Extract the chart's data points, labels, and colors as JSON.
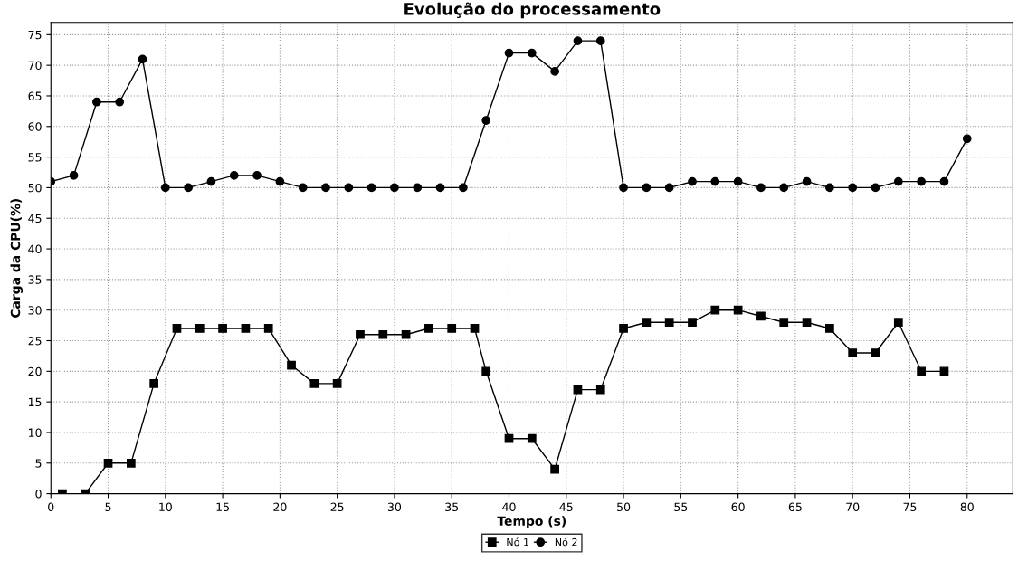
{
  "chart_data": {
    "type": "line",
    "title": "Evolução do processamento",
    "xlabel": "Tempo (s)",
    "ylabel": "Carga da CPU(%)",
    "xlim": [
      0,
      84
    ],
    "ylim": [
      0,
      77
    ],
    "xticks": [
      0,
      5,
      10,
      15,
      20,
      25,
      30,
      35,
      40,
      45,
      50,
      55,
      60,
      65,
      70,
      75,
      80
    ],
    "yticks": [
      0,
      5,
      10,
      15,
      20,
      25,
      30,
      35,
      40,
      45,
      50,
      55,
      60,
      65,
      70,
      75
    ],
    "grid": true,
    "legend": "bottom",
    "line_style": "solid",
    "series": [
      {
        "name": "Nó 1",
        "color": "#000000",
        "marker": "square",
        "x": [
          1,
          3,
          5,
          7,
          9,
          11,
          13,
          15,
          17,
          19,
          21,
          23,
          25,
          27,
          29,
          31,
          33,
          35,
          37,
          38,
          40,
          42,
          44,
          46,
          48,
          50,
          52,
          54,
          56,
          58,
          60,
          62,
          64,
          66,
          68,
          70,
          72,
          74,
          76,
          78
        ],
        "values": [
          0,
          0,
          5,
          5,
          18,
          27,
          27,
          27,
          27,
          27,
          21,
          18,
          18,
          26,
          26,
          26,
          27,
          27,
          27,
          20,
          9,
          9,
          4,
          17,
          17,
          27,
          28,
          28,
          28,
          30,
          30,
          29,
          28,
          28,
          27,
          23,
          23,
          28,
          20,
          20
        ]
      },
      {
        "name": "Nó 2",
        "color": "#000000",
        "marker": "circle",
        "x": [
          0,
          2,
          4,
          6,
          8,
          10,
          12,
          14,
          16,
          18,
          20,
          22,
          24,
          26,
          28,
          30,
          32,
          34,
          36,
          38,
          40,
          42,
          44,
          46,
          48,
          50,
          52,
          54,
          56,
          58,
          60,
          62,
          64,
          66,
          68,
          70,
          72,
          74,
          76,
          78,
          80
        ],
        "values": [
          51,
          52,
          64,
          64,
          71,
          50,
          50,
          51,
          52,
          52,
          51,
          50,
          50,
          50,
          50,
          50,
          50,
          50,
          50,
          61,
          72,
          72,
          69,
          74,
          74,
          50,
          50,
          50,
          51,
          51,
          51,
          50,
          50,
          51,
          50,
          50,
          50,
          51,
          51,
          51,
          58
        ]
      }
    ]
  }
}
